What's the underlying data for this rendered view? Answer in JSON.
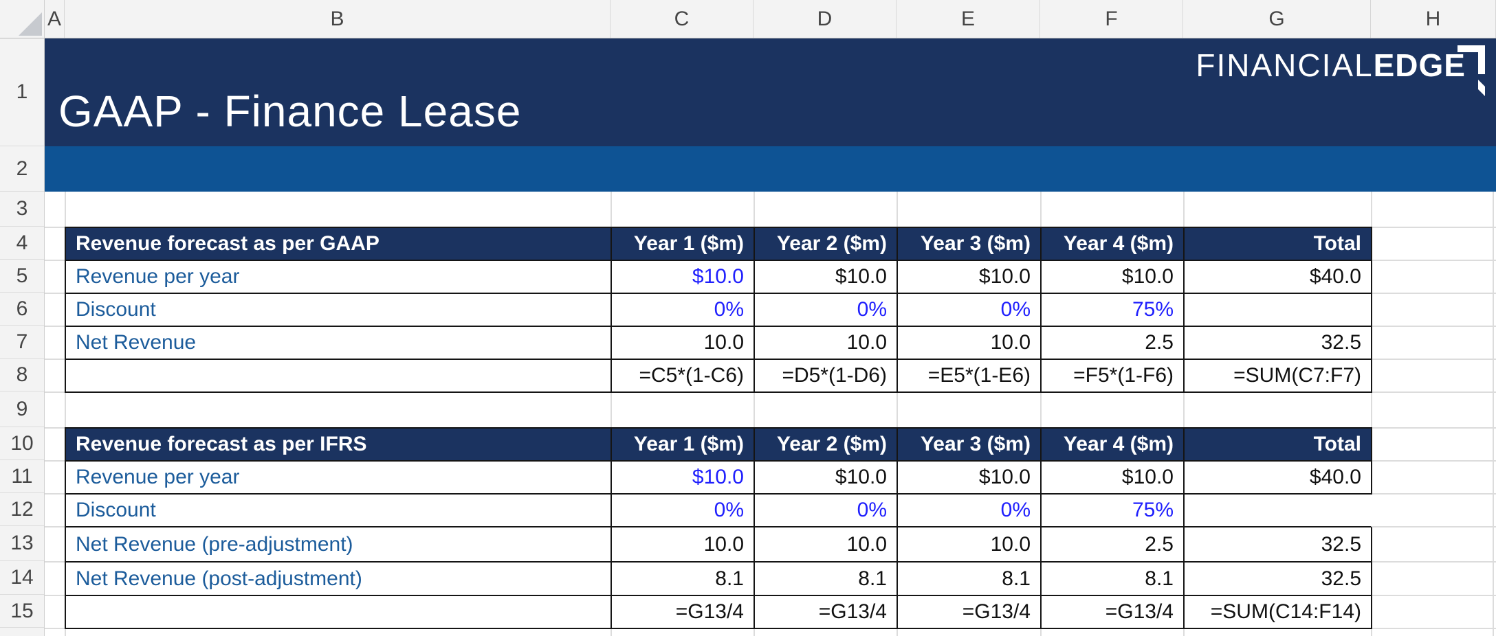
{
  "sheet": {
    "column_headers": [
      "A",
      "B",
      "C",
      "D",
      "E",
      "F",
      "G",
      "H"
    ],
    "row_numbers": [
      "1",
      "2",
      "3",
      "4",
      "5",
      "6",
      "7",
      "8",
      "9",
      "10",
      "11",
      "12",
      "13",
      "14",
      "15"
    ]
  },
  "banner": {
    "title": "GAAP - Finance Lease",
    "logo": {
      "thin": "FINANCIAL",
      "bold": "EDGE"
    }
  },
  "colors": {
    "banner_navy": "#1B3360",
    "band_blue": "#0E5394",
    "header_navy": "#1B3360",
    "label_blue": "#1C5C9B",
    "input_blue": "#1F1FFD",
    "value_black": "#111111",
    "grid_line": "#DCDCDC",
    "chrome_bg": "#F3F3F3",
    "chrome_text": "#454545",
    "table_border": "#151515"
  },
  "tables": [
    {
      "title": "Revenue forecast as per GAAP",
      "columns": [
        "Year 1 ($m)",
        "Year 2 ($m)",
        "Year 3 ($m)",
        "Year 4 ($m)",
        "Total"
      ],
      "rows": [
        {
          "label": "Revenue per year",
          "cells": [
            {
              "text": "$10.0",
              "kind": "input"
            },
            {
              "text": "$10.0",
              "kind": "calc"
            },
            {
              "text": "$10.0",
              "kind": "calc"
            },
            {
              "text": "$10.0",
              "kind": "calc"
            },
            {
              "text": "$40.0",
              "kind": "calc"
            }
          ]
        },
        {
          "label": "Discount",
          "cells": [
            {
              "text": "0%",
              "kind": "input"
            },
            {
              "text": "0%",
              "kind": "input"
            },
            {
              "text": "0%",
              "kind": "input"
            },
            {
              "text": "75%",
              "kind": "input"
            },
            {
              "text": "",
              "kind": "empty"
            }
          ]
        },
        {
          "label": "Net Revenue",
          "cells": [
            {
              "text": "10.0",
              "kind": "calc"
            },
            {
              "text": "10.0",
              "kind": "calc"
            },
            {
              "text": "10.0",
              "kind": "calc"
            },
            {
              "text": "2.5",
              "kind": "calc"
            },
            {
              "text": "32.5",
              "kind": "calc"
            }
          ]
        },
        {
          "label": "",
          "cells": [
            {
              "text": "=C5*(1-C6)",
              "kind": "formula"
            },
            {
              "text": "=D5*(1-D6)",
              "kind": "formula"
            },
            {
              "text": "=E5*(1-E6)",
              "kind": "formula"
            },
            {
              "text": "=F5*(1-F6)",
              "kind": "formula"
            },
            {
              "text": "=SUM(C7:F7)",
              "kind": "formula"
            }
          ]
        }
      ]
    },
    {
      "title": "Revenue forecast as per IFRS",
      "columns": [
        "Year 1 ($m)",
        "Year 2 ($m)",
        "Year 3 ($m)",
        "Year 4 ($m)",
        "Total"
      ],
      "rows": [
        {
          "label": "Revenue per year",
          "cells": [
            {
              "text": "$10.0",
              "kind": "input"
            },
            {
              "text": "$10.0",
              "kind": "calc"
            },
            {
              "text": "$10.0",
              "kind": "calc"
            },
            {
              "text": "$10.0",
              "kind": "calc"
            },
            {
              "text": "$40.0",
              "kind": "calc"
            }
          ]
        },
        {
          "label": "Discount",
          "cells": [
            {
              "text": "0%",
              "kind": "input"
            },
            {
              "text": "0%",
              "kind": "input"
            },
            {
              "text": "0%",
              "kind": "input"
            },
            {
              "text": "75%",
              "kind": "input"
            },
            {
              "text": "",
              "kind": "empty",
              "no_right_border": true
            }
          ]
        },
        {
          "label": "Net Revenue (pre-adjustment)",
          "cells": [
            {
              "text": "10.0",
              "kind": "calc"
            },
            {
              "text": "10.0",
              "kind": "calc"
            },
            {
              "text": "10.0",
              "kind": "calc"
            },
            {
              "text": "2.5",
              "kind": "calc"
            },
            {
              "text": "32.5",
              "kind": "calc"
            }
          ]
        },
        {
          "label": "Net Revenue (post-adjustment)",
          "cells": [
            {
              "text": "8.1",
              "kind": "calc"
            },
            {
              "text": "8.1",
              "kind": "calc"
            },
            {
              "text": "8.1",
              "kind": "calc"
            },
            {
              "text": "8.1",
              "kind": "calc"
            },
            {
              "text": "32.5",
              "kind": "calc"
            }
          ]
        },
        {
          "label": "",
          "cells": [
            {
              "text": "=G13/4",
              "kind": "formula"
            },
            {
              "text": "=G13/4",
              "kind": "formula"
            },
            {
              "text": "=G13/4",
              "kind": "formula"
            },
            {
              "text": "=G13/4",
              "kind": "formula"
            },
            {
              "text": "=SUM(C14:F14)",
              "kind": "formula"
            }
          ]
        }
      ]
    }
  ]
}
